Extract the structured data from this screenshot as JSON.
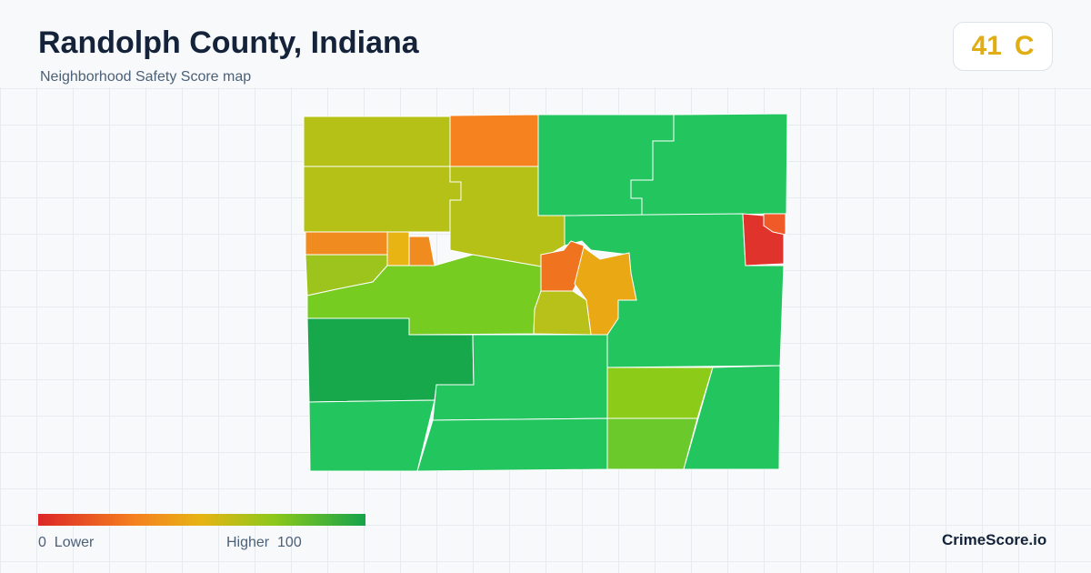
{
  "header": {
    "title": "Randolph County, Indiana",
    "subtitle": "Neighborhood Safety Score map"
  },
  "score": {
    "value": "41",
    "grade": "C"
  },
  "legend": {
    "min": "0",
    "min_label": "Lower",
    "max_label": "Higher",
    "max": "100"
  },
  "brand": "CrimeScore.io"
}
